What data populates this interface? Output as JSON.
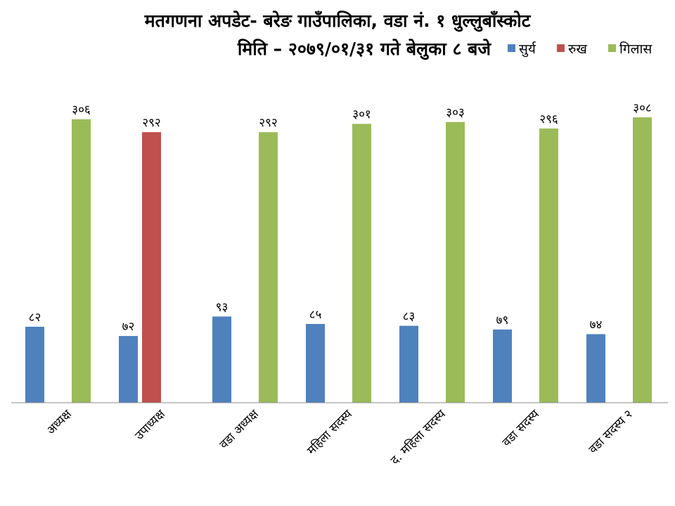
{
  "chart_data": {
    "type": "bar",
    "title": "मतगणना अपडेट- बरेङ गाउँपालिका, वडा नं. १ धुल्लुबाँस्कोट",
    "subtitle": "मिति – २०७९/०१/३१ गते बेलुका ८ बजे",
    "categories": [
      "अध्यक्ष",
      "उपाध्यक्ष",
      "वडा अध्यक्ष",
      "महिला सदस्य",
      "द. महिला सदस्य",
      "वडा सदस्य",
      "वडा सदस्य २"
    ],
    "series": [
      {
        "name": "सुर्य",
        "color": "#4f81bd",
        "values": [
          82,
          72,
          93,
          85,
          83,
          79,
          74
        ],
        "labels": [
          "८२",
          "७२",
          "९३",
          "८५",
          "८३",
          "७९",
          "७४"
        ]
      },
      {
        "name": "रुख",
        "color": "#c0504d",
        "values": [
          null,
          292,
          null,
          null,
          null,
          null,
          null
        ],
        "labels": [
          null,
          "२९२",
          null,
          null,
          null,
          null,
          null
        ]
      },
      {
        "name": "गिलास",
        "color": "#9bbb59",
        "values": [
          306,
          null,
          292,
          301,
          303,
          296,
          308
        ],
        "labels": [
          "३०६",
          null,
          "२९२",
          "३०१",
          "३०३",
          "२९६",
          "३०८"
        ]
      }
    ],
    "ylim": [
      0,
      308
    ],
    "grid": false,
    "legend_position": "top-right",
    "xlabel": "",
    "ylabel": ""
  }
}
